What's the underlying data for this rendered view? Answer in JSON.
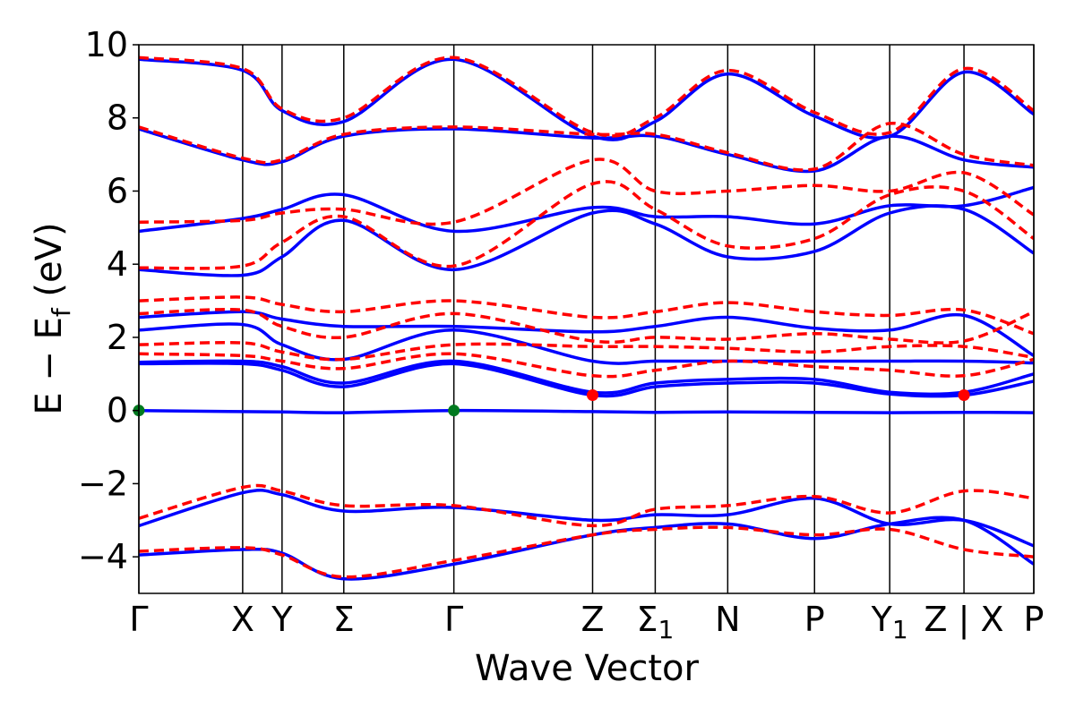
{
  "chart_data": {
    "type": "line",
    "title": "",
    "xlabel": "Wave Vector",
    "ylabel_parts": [
      "E − E",
      "f",
      " (eV)"
    ],
    "ylim": [
      -5,
      10
    ],
    "yticks": [
      10,
      8,
      6,
      4,
      2,
      0,
      -2,
      -4
    ],
    "ytick_labels": [
      "10",
      "8",
      "6",
      "4",
      "2",
      "0",
      "−2",
      "−4"
    ],
    "xlim": [
      0,
      1.0
    ],
    "high_symmetry_points": [
      {
        "x": 0.0,
        "label": "Γ"
      },
      {
        "x": 0.116,
        "label": "X"
      },
      {
        "x": 0.16,
        "label": "Y"
      },
      {
        "x": 0.229,
        "label": "Σ"
      },
      {
        "x": 0.352,
        "label": "Γ"
      },
      {
        "x": 0.507,
        "label": "Z"
      },
      {
        "x": 0.577,
        "label": "Σ1"
      },
      {
        "x": 0.658,
        "label": "N"
      },
      {
        "x": 0.755,
        "label": "P"
      },
      {
        "x": 0.839,
        "label": "Y1"
      },
      {
        "x": 0.922,
        "label": "Z | X"
      },
      {
        "x": 1.0,
        "label": "P"
      }
    ],
    "grid": false,
    "series_styles": {
      "solid_color": "#0000ff",
      "dashed_color": "#ff0000"
    },
    "markers": [
      {
        "x": 0.0,
        "y": 0.0,
        "color": "#007a1f",
        "kind": "vbm"
      },
      {
        "x": 0.352,
        "y": 0.0,
        "color": "#007a1f",
        "kind": "vbm"
      },
      {
        "x": 0.507,
        "y": 0.42,
        "color": "#ff0000",
        "kind": "cbm"
      },
      {
        "x": 0.922,
        "y": 0.42,
        "color": "#ff0000",
        "kind": "cbm"
      }
    ],
    "solid_bands": [
      {
        "x": [
          0,
          0.116,
          0.16,
          0.229,
          0.352,
          0.507,
          0.577,
          0.658,
          0.755,
          0.839,
          0.922,
          1.0
        ],
        "y": [
          0.0,
          -0.03,
          -0.04,
          -0.06,
          0.0,
          -0.03,
          -0.05,
          -0.04,
          -0.05,
          -0.06,
          -0.05,
          -0.06
        ]
      },
      {
        "x": [
          0,
          0.116,
          0.16,
          0.229,
          0.352,
          0.507,
          0.577,
          0.658,
          0.755,
          0.839,
          0.922,
          1.0
        ],
        "y": [
          1.28,
          1.28,
          1.1,
          0.65,
          1.28,
          0.42,
          0.65,
          0.75,
          0.75,
          0.45,
          0.42,
          0.8
        ]
      },
      {
        "x": [
          0,
          0.116,
          0.16,
          0.229,
          0.352,
          0.507,
          0.577,
          0.658,
          0.755,
          0.839,
          0.922,
          1.0
        ],
        "y": [
          1.32,
          1.35,
          1.2,
          0.75,
          1.35,
          0.5,
          0.75,
          0.85,
          0.85,
          0.5,
          0.5,
          1.0
        ]
      },
      {
        "x": [
          0,
          0.116,
          0.16,
          0.229,
          0.352,
          0.507,
          0.577,
          0.658,
          0.755,
          0.839,
          0.922,
          1.0
        ],
        "y": [
          2.2,
          2.35,
          1.8,
          1.4,
          2.2,
          1.35,
          1.35,
          1.35,
          1.35,
          1.35,
          1.35,
          1.3
        ]
      },
      {
        "x": [
          0,
          0.116,
          0.16,
          0.229,
          0.352,
          0.507,
          0.577,
          0.658,
          0.755,
          0.839,
          0.922,
          1.0
        ],
        "y": [
          2.55,
          2.7,
          2.5,
          2.3,
          2.3,
          2.15,
          2.3,
          2.55,
          2.25,
          2.2,
          2.6,
          1.5
        ]
      },
      {
        "x": [
          0,
          0.116,
          0.16,
          0.229,
          0.352,
          0.507,
          0.577,
          0.658,
          0.755,
          0.839,
          0.922,
          1.0
        ],
        "y": [
          3.85,
          3.7,
          4.2,
          5.2,
          3.85,
          5.4,
          5.1,
          4.2,
          4.35,
          5.4,
          5.5,
          4.3
        ]
      },
      {
        "x": [
          0,
          0.116,
          0.16,
          0.229,
          0.352,
          0.507,
          0.577,
          0.658,
          0.755,
          0.839,
          0.922,
          1.0
        ],
        "y": [
          4.9,
          5.25,
          5.5,
          5.9,
          4.9,
          5.55,
          5.3,
          5.3,
          5.1,
          5.6,
          5.6,
          6.1
        ]
      },
      {
        "x": [
          0,
          0.116,
          0.16,
          0.229,
          0.352,
          0.507,
          0.577,
          0.658,
          0.755,
          0.839,
          0.922,
          1.0
        ],
        "y": [
          -3.15,
          -2.25,
          -2.3,
          -2.75,
          -2.65,
          -3.0,
          -2.85,
          -2.85,
          -2.4,
          -3.1,
          -3.0,
          -3.7
        ]
      },
      {
        "x": [
          0,
          0.116,
          0.16,
          0.229,
          0.352,
          0.507,
          0.577,
          0.658,
          0.755,
          0.839,
          0.922,
          1.0
        ],
        "y": [
          -3.95,
          -3.8,
          -3.9,
          -4.6,
          -4.2,
          -3.4,
          -3.2,
          -3.1,
          -3.5,
          -3.1,
          -3.0,
          -4.2
        ]
      },
      {
        "x": [
          0,
          0.116,
          0.16,
          0.229,
          0.352,
          0.507,
          0.577,
          0.658,
          0.755,
          0.839,
          0.922,
          1.0
        ],
        "y": [
          7.7,
          6.85,
          6.8,
          7.5,
          7.7,
          7.45,
          7.5,
          7.0,
          6.55,
          7.5,
          6.85,
          6.65
        ]
      },
      {
        "x": [
          0,
          0.116,
          0.16,
          0.229,
          0.352,
          0.507,
          0.577,
          0.658,
          0.755,
          0.839,
          0.922,
          1.0
        ],
        "y": [
          9.6,
          9.3,
          8.2,
          7.9,
          9.6,
          7.5,
          7.9,
          9.2,
          8.05,
          7.5,
          9.25,
          8.1
        ]
      }
    ],
    "dashed_bands": [
      {
        "x": [
          0,
          0.116,
          0.16,
          0.229,
          0.352,
          0.507,
          0.577,
          0.658,
          0.755,
          0.839,
          0.922,
          1.0
        ],
        "y": [
          1.55,
          1.5,
          1.35,
          1.15,
          1.55,
          0.95,
          1.1,
          1.35,
          1.2,
          1.1,
          0.95,
          1.4
        ]
      },
      {
        "x": [
          0,
          0.116,
          0.16,
          0.229,
          0.352,
          0.507,
          0.577,
          0.658,
          0.755,
          0.839,
          0.922,
          1.0
        ],
        "y": [
          1.8,
          1.85,
          1.6,
          1.4,
          1.8,
          1.75,
          1.75,
          1.7,
          1.6,
          1.75,
          1.75,
          1.45
        ]
      },
      {
        "x": [
          0,
          0.116,
          0.16,
          0.229,
          0.352,
          0.507,
          0.577,
          0.658,
          0.755,
          0.839,
          0.922,
          1.0
        ],
        "y": [
          2.65,
          2.75,
          2.3,
          2.0,
          2.65,
          1.9,
          2.0,
          1.95,
          2.1,
          1.95,
          1.9,
          2.7
        ]
      },
      {
        "x": [
          0,
          0.116,
          0.16,
          0.229,
          0.352,
          0.507,
          0.577,
          0.658,
          0.755,
          0.839,
          0.922,
          1.0
        ],
        "y": [
          3.0,
          3.1,
          2.9,
          2.7,
          3.0,
          2.55,
          2.7,
          2.95,
          2.7,
          2.6,
          2.75,
          2.1
        ]
      },
      {
        "x": [
          0,
          0.116,
          0.16,
          0.229,
          0.352,
          0.507,
          0.577,
          0.658,
          0.755,
          0.839,
          0.922,
          1.0
        ],
        "y": [
          3.9,
          3.95,
          4.6,
          5.3,
          3.95,
          6.2,
          5.5,
          4.5,
          4.7,
          5.9,
          6.0,
          4.7
        ]
      },
      {
        "x": [
          0,
          0.116,
          0.16,
          0.229,
          0.352,
          0.507,
          0.577,
          0.658,
          0.755,
          0.839,
          0.922,
          1.0
        ],
        "y": [
          5.15,
          5.2,
          5.4,
          5.5,
          5.15,
          6.85,
          6.0,
          6.0,
          6.15,
          6.0,
          6.5,
          5.35
        ]
      },
      {
        "x": [
          0,
          0.116,
          0.16,
          0.229,
          0.352,
          0.507,
          0.577,
          0.658,
          0.755,
          0.839,
          0.922,
          1.0
        ],
        "y": [
          -2.95,
          -2.1,
          -2.2,
          -2.6,
          -2.6,
          -3.15,
          -2.7,
          -2.6,
          -2.35,
          -2.8,
          -2.2,
          -2.4
        ]
      },
      {
        "x": [
          0,
          0.116,
          0.16,
          0.229,
          0.352,
          0.507,
          0.577,
          0.658,
          0.755,
          0.839,
          0.922,
          1.0
        ],
        "y": [
          -3.85,
          -3.75,
          -3.95,
          -4.55,
          -4.1,
          -3.4,
          -3.25,
          -3.2,
          -3.4,
          -3.25,
          -3.8,
          -4.0
        ]
      },
      {
        "x": [
          0,
          0.116,
          0.16,
          0.229,
          0.352,
          0.507,
          0.577,
          0.658,
          0.755,
          0.839,
          0.922,
          1.0
        ],
        "y": [
          7.75,
          6.9,
          6.85,
          7.55,
          7.75,
          7.55,
          7.55,
          7.05,
          6.6,
          7.85,
          7.0,
          6.7
        ]
      },
      {
        "x": [
          0,
          0.116,
          0.16,
          0.229,
          0.352,
          0.507,
          0.577,
          0.658,
          0.755,
          0.839,
          0.922,
          1.0
        ],
        "y": [
          9.65,
          9.35,
          8.25,
          8.0,
          9.65,
          7.6,
          8.0,
          9.3,
          8.15,
          7.6,
          9.35,
          8.2
        ]
      }
    ]
  }
}
